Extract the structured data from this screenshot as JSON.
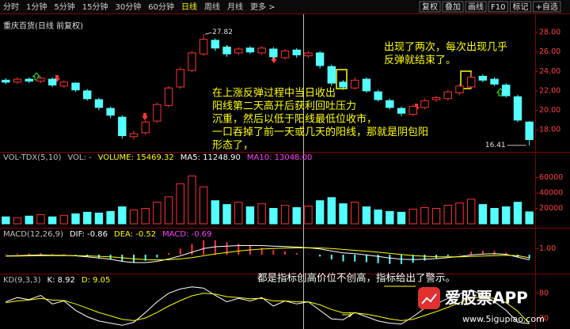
{
  "toolbar": {
    "periods": [
      "分时",
      "1分钟",
      "5分钟",
      "15分钟",
      "30分钟",
      "60分钟",
      "日线",
      "周线",
      "月线",
      "更多 >"
    ],
    "tools": [
      "复权",
      "叠加",
      "画线",
      "F10",
      "标记",
      "+自选"
    ]
  },
  "chart_data": [
    {
      "type": "candlestick",
      "title": "重庆百货(日线 前复权)",
      "up_color": "#ff3232",
      "down_color": "#54ffff",
      "open": [
        23.1,
        22.9,
        23.2,
        23.0,
        23.2,
        22.5,
        22.8,
        22.0,
        21.1,
        20.2,
        19.3,
        17.3,
        17.7,
        18.9,
        20.5,
        22.4,
        24.1,
        25.8,
        27.2,
        26.5,
        25.9,
        26.4,
        25.9,
        26.3,
        25.4,
        26.2,
        25.6,
        25.9,
        24.5,
        22.9,
        22.3,
        23.2,
        21.9,
        21.0,
        20.2,
        19.6,
        20.3,
        21.1,
        21.2,
        21.8,
        22.4,
        23.5,
        23.2,
        22.6,
        21.4,
        18.8
      ],
      "high": [
        23.3,
        23.4,
        23.4,
        23.5,
        23.4,
        23.1,
        22.9,
        22.2,
        21.3,
        20.4,
        19.5,
        17.9,
        19.0,
        20.8,
        22.5,
        24.4,
        26.1,
        27.82,
        27.4,
        26.7,
        26.5,
        26.6,
        26.6,
        26.5,
        26.3,
        26.4,
        26.1,
        26.1,
        24.7,
        23.1,
        23.4,
        23.4,
        22.1,
        21.2,
        20.4,
        20.6,
        21.2,
        21.5,
        22.1,
        22.7,
        23.9,
        23.7,
        23.4,
        22.8,
        21.6,
        18.9
      ],
      "low": [
        22.7,
        22.7,
        22.8,
        22.8,
        22.4,
        22.3,
        21.9,
        21.0,
        20.0,
        19.2,
        17.1,
        17.0,
        17.5,
        18.7,
        20.3,
        22.2,
        23.9,
        25.6,
        26.1,
        25.5,
        25.7,
        25.8,
        25.7,
        25.2,
        25.2,
        25.4,
        25.4,
        24.3,
        22.5,
        22.1,
        22.1,
        21.8,
        20.9,
        20.1,
        19.4,
        19.4,
        20.1,
        20.9,
        21.0,
        21.6,
        22.2,
        22.9,
        22.5,
        21.3,
        18.8,
        16.41
      ],
      "close": [
        22.9,
        23.2,
        23.0,
        23.3,
        22.6,
        22.9,
        22.1,
        21.2,
        20.3,
        19.5,
        17.4,
        17.6,
        18.8,
        20.6,
        22.3,
        24.2,
        25.9,
        27.3,
        26.4,
        25.8,
        26.3,
        26.0,
        26.4,
        25.5,
        26.1,
        25.7,
        25.9,
        24.6,
        22.8,
        22.4,
        23.1,
        22.0,
        21.1,
        20.3,
        19.7,
        20.4,
        21.0,
        21.3,
        21.9,
        22.5,
        23.4,
        23.1,
        22.7,
        21.5,
        19.0,
        17.0
      ],
      "ylim": [
        15.9,
        28.9
      ],
      "yticks": [
        {
          "value": 28,
          "label": "28.00"
        },
        {
          "value": 26,
          "label": "26.00"
        },
        {
          "value": 24,
          "label": "24.00"
        },
        {
          "value": 22,
          "label": "22.00"
        },
        {
          "value": 20,
          "label": "20.00"
        },
        {
          "value": 18,
          "label": "18.00"
        }
      ],
      "annotations": [
        [
          "在上涨反弹过程中当日收出",
          "阳线第二天高开后获利回吐压力",
          "沉重，然后以低于阳线最低位收市，",
          "一口吞掉了前一天或几天的阳线，那就是阴包阳",
          "形态了，"
        ],
        [
          "出现了两次，每次出现几乎",
          "反弹就结束了。"
        ]
      ]
    },
    {
      "type": "bar",
      "header": [
        {
          "text": "VOL-TDX(5,10)",
          "color": "#c0c0c0"
        },
        {
          "text": "VOL: -",
          "color": "#c0c0c0"
        },
        {
          "text": "VOLUME: 15469.32",
          "color": "#ffff00"
        },
        {
          "text": "MA5: 11248.90",
          "color": "#ffffff"
        },
        {
          "text": "MA10: 13048.00",
          "color": "#ff40ff"
        }
      ],
      "values": [
        9000,
        8000,
        10000,
        12000,
        9000,
        11000,
        13000,
        15000,
        14000,
        16000,
        22000,
        18000,
        20000,
        28000,
        35000,
        52000,
        62000,
        48000,
        30000,
        25000,
        28000,
        22000,
        26000,
        20000,
        24000,
        21000,
        23000,
        30000,
        34000,
        26000,
        28000,
        22000,
        18000,
        16000,
        15000,
        19000,
        21000,
        20000,
        24000,
        27000,
        32000,
        25000,
        20000,
        22000,
        28000,
        15469.32
      ],
      "ylim": [
        0,
        80000
      ],
      "yticks": [
        60000,
        40000,
        20000
      ]
    },
    {
      "type": "macd",
      "header": [
        {
          "text": "MACD(12,26,9)",
          "color": "#c0c0c0"
        },
        {
          "text": "DIF: -0.86",
          "color": "#ffffff"
        },
        {
          "text": "DEA: -0.52",
          "color": "#ffff00"
        },
        {
          "text": "MACD: -0.69",
          "color": "#ff40ff"
        }
      ],
      "dif": [
        -0.2,
        -0.15,
        -0.1,
        -0.05,
        -0.1,
        -0.1,
        -0.2,
        -0.35,
        -0.55,
        -0.75,
        -1.1,
        -1.3,
        -1.3,
        -1.1,
        -0.7,
        -0.2,
        0.4,
        1.0,
        1.3,
        1.4,
        1.5,
        1.5,
        1.5,
        1.4,
        1.35,
        1.25,
        1.15,
        0.95,
        0.6,
        0.3,
        0.15,
        -0.05,
        -0.3,
        -0.55,
        -0.75,
        -0.8,
        -0.75,
        -0.65,
        -0.5,
        -0.3,
        -0.05,
        0.1,
        0.15,
        0.05,
        -0.4,
        -0.86
      ],
      "dea": [
        -0.25,
        -0.23,
        -0.2,
        -0.17,
        -0.16,
        -0.15,
        -0.16,
        -0.2,
        -0.27,
        -0.37,
        -0.51,
        -0.67,
        -0.8,
        -0.86,
        -0.83,
        -0.7,
        -0.48,
        -0.18,
        0.12,
        0.37,
        0.6,
        0.78,
        0.92,
        1.02,
        1.09,
        1.12,
        1.13,
        1.1,
        1.0,
        0.86,
        0.72,
        0.57,
        0.4,
        0.21,
        0.02,
        -0.14,
        -0.26,
        -0.34,
        -0.37,
        -0.36,
        -0.3,
        -0.22,
        -0.15,
        -0.11,
        -0.17,
        -0.52
      ],
      "macd": [
        0.1,
        0.16,
        0.2,
        0.24,
        0.12,
        0.1,
        -0.08,
        -0.3,
        -0.56,
        -0.76,
        -1.18,
        -1.26,
        -1.0,
        -0.48,
        0.26,
        1.0,
        1.76,
        2.36,
        2.36,
        2.06,
        1.8,
        1.44,
        1.16,
        0.76,
        0.52,
        0.26,
        0.04,
        -0.3,
        -0.8,
        -1.12,
        -1.14,
        -1.24,
        -1.4,
        -1.52,
        -1.54,
        -1.32,
        -0.98,
        -0.62,
        -0.26,
        0.12,
        0.5,
        0.64,
        0.6,
        0.32,
        -0.46,
        -0.69
      ],
      "dif_color": "#ffffff",
      "dea_color": "#ffff00",
      "up_color": "#ff3232",
      "down_color": "#54ffff",
      "ylim": [
        -2.6,
        2.6
      ],
      "yticks": [
        {
          "value": 1,
          "label": "1.00"
        }
      ]
    },
    {
      "type": "line",
      "header": [
        {
          "text": "KD(9,3,3)",
          "color": "#c0c0c0"
        },
        {
          "text": "K: 8.92",
          "color": "#ffffff"
        },
        {
          "text": "D: 9.05",
          "color": "#ffff00"
        }
      ],
      "series": [
        {
          "color": "#ffffff",
          "values": [
            60,
            70,
            65,
            75,
            55,
            62,
            40,
            25,
            15,
            10,
            5,
            12,
            35,
            60,
            80,
            90,
            95,
            92,
            75,
            60,
            68,
            62,
            70,
            50,
            62,
            55,
            60,
            40,
            20,
            18,
            35,
            25,
            15,
            10,
            8,
            25,
            45,
            55,
            68,
            78,
            88,
            75,
            60,
            40,
            12,
            8.92
          ]
        },
        {
          "color": "#ffff00",
          "values": [
            58,
            62,
            64,
            68,
            64,
            63,
            55,
            45,
            35,
            27,
            19,
            16,
            22,
            35,
            50,
            63,
            74,
            80,
            78,
            72,
            70,
            67,
            68,
            62,
            62,
            60,
            60,
            53,
            42,
            34,
            34,
            31,
            26,
            20,
            16,
            19,
            28,
            37,
            47,
            58,
            68,
            72,
            68,
            58,
            38,
            9.05
          ]
        }
      ],
      "ylim": [
        0,
        100
      ],
      "yticks": [
        80,
        20
      ],
      "annotation": "都是指标创高价位不创高，指标给出了警示。"
    }
  ],
  "watermark": {
    "brand": "爱股票APP",
    "url": "www.5igupiao.com"
  }
}
